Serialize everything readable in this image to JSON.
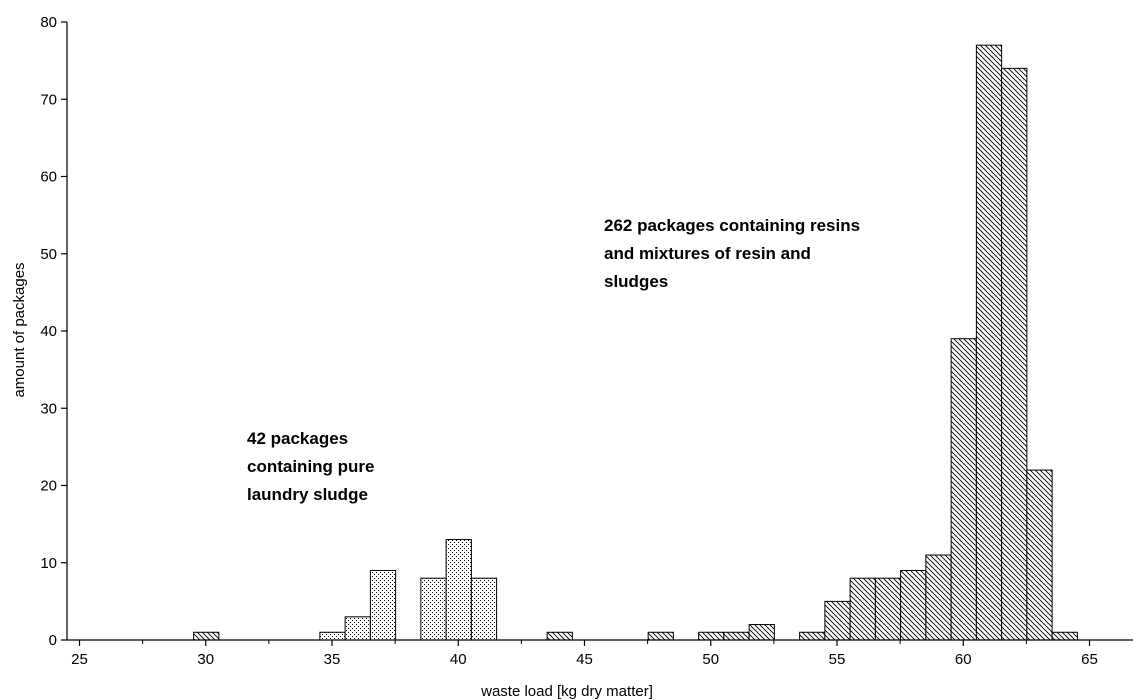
{
  "chart_data": {
    "type": "bar",
    "xlabel": "waste load [kg dry matter]",
    "ylabel": "amount of packages",
    "xlim": [
      25,
      67.5
    ],
    "ylim": [
      0,
      80
    ],
    "x_ticks": [
      25,
      30,
      35,
      40,
      45,
      50,
      55,
      60,
      65
    ],
    "y_ticks": [
      0,
      10,
      20,
      30,
      40,
      50,
      60,
      70,
      80
    ],
    "bin_width": 1,
    "grid": false,
    "legend": "none",
    "series": [
      {
        "fill": "dotted",
        "bars": [
          {
            "x": 35,
            "value": 1
          },
          {
            "x": 36,
            "value": 3
          },
          {
            "x": 37,
            "value": 9
          },
          {
            "x": 39,
            "value": 8
          },
          {
            "x": 40,
            "value": 13
          },
          {
            "x": 41,
            "value": 8
          }
        ]
      },
      {
        "fill": "hatched",
        "bars": [
          {
            "x": 30,
            "value": 1
          },
          {
            "x": 44,
            "value": 1
          },
          {
            "x": 48,
            "value": 1
          },
          {
            "x": 50,
            "value": 1
          },
          {
            "x": 51,
            "value": 1
          },
          {
            "x": 52,
            "value": 2
          },
          {
            "x": 54,
            "value": 1
          },
          {
            "x": 55,
            "value": 5
          },
          {
            "x": 56,
            "value": 8
          },
          {
            "x": 57,
            "value": 8
          },
          {
            "x": 58,
            "value": 9
          },
          {
            "x": 59,
            "value": 11
          },
          {
            "x": 60,
            "value": 39
          },
          {
            "x": 61,
            "value": 77
          },
          {
            "x": 62,
            "value": 74
          },
          {
            "x": 63,
            "value": 22
          },
          {
            "x": 64,
            "value": 1
          }
        ]
      }
    ],
    "annotations": [
      {
        "lines": [
          "42 packages",
          "containing pure",
          "laundry sludge"
        ]
      },
      {
        "lines": [
          "262 packages containing resins",
          "and mixtures of resin and",
          "sludges"
        ]
      }
    ]
  }
}
